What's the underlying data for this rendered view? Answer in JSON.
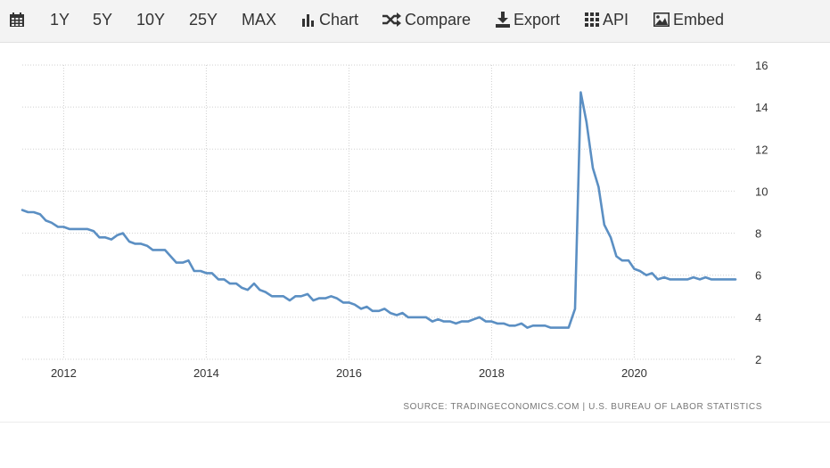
{
  "toolbar": {
    "calendar_icon": "calendar-icon",
    "ranges": [
      "1Y",
      "5Y",
      "10Y",
      "25Y",
      "MAX"
    ],
    "chart_label": "Chart",
    "compare_label": "Compare",
    "export_label": "Export",
    "api_label": "API",
    "embed_label": "Embed"
  },
  "source_text": "SOURCE: TRADINGECONOMICS.COM  |  U.S. BUREAU OF LABOR STATISTICS",
  "colors": {
    "line": "#5b8fc3",
    "grid": "#d0d0d0",
    "toolbar_bg": "#f3f3f3",
    "text": "#333333"
  },
  "chart_data": {
    "type": "line",
    "title": "",
    "xlabel": "",
    "ylabel": "",
    "x_ticks": [
      "2012",
      "2014",
      "2016",
      "2018",
      "2020"
    ],
    "y_ticks": [
      2,
      4,
      6,
      8,
      10,
      12,
      14,
      16
    ],
    "ylim": [
      2,
      16
    ],
    "xlim": [
      2011.42,
      2021.42
    ],
    "y_axis_position": "right",
    "grid": true,
    "series": [
      {
        "name": "",
        "x": [
          2011.42,
          2011.5,
          2011.58,
          2011.67,
          2011.75,
          2011.83,
          2011.92,
          2012.0,
          2012.08,
          2012.17,
          2012.25,
          2012.33,
          2012.42,
          2012.5,
          2012.58,
          2012.67,
          2012.75,
          2012.83,
          2012.92,
          2013.0,
          2013.08,
          2013.17,
          2013.25,
          2013.33,
          2013.42,
          2013.5,
          2013.58,
          2013.67,
          2013.75,
          2013.83,
          2013.92,
          2014.0,
          2014.08,
          2014.17,
          2014.25,
          2014.33,
          2014.42,
          2014.5,
          2014.58,
          2014.67,
          2014.75,
          2014.83,
          2014.92,
          2015.0,
          2015.08,
          2015.17,
          2015.25,
          2015.33,
          2015.42,
          2015.5,
          2015.58,
          2015.67,
          2015.75,
          2015.83,
          2015.92,
          2016.0,
          2016.08,
          2016.17,
          2016.25,
          2016.33,
          2016.42,
          2016.5,
          2016.58,
          2016.67,
          2016.75,
          2016.83,
          2016.92,
          2017.0,
          2017.08,
          2017.17,
          2017.25,
          2017.33,
          2017.42,
          2017.5,
          2017.58,
          2017.67,
          2017.75,
          2017.83,
          2017.92,
          2018.0,
          2018.08,
          2018.17,
          2018.25,
          2018.33,
          2018.42,
          2018.5,
          2018.58,
          2018.67,
          2018.75,
          2018.83,
          2018.92,
          2019.0,
          2019.08,
          2019.17,
          2019.25,
          2019.33,
          2019.42,
          2019.5,
          2019.58,
          2019.67,
          2019.75,
          2019.83,
          2019.92,
          2020.0,
          2020.08,
          2020.17,
          2020.25,
          2020.33,
          2020.42,
          2020.5,
          2020.58,
          2020.67,
          2020.75,
          2020.83,
          2020.92,
          2021.0,
          2021.08,
          2021.17,
          2021.25,
          2021.33,
          2021.42
        ],
        "values": [
          9.1,
          9.0,
          9.0,
          8.9,
          8.6,
          8.5,
          8.3,
          8.3,
          8.2,
          8.2,
          8.2,
          8.2,
          8.1,
          7.8,
          7.8,
          7.7,
          7.9,
          8.0,
          7.6,
          7.5,
          7.5,
          7.4,
          7.2,
          7.2,
          7.2,
          6.9,
          6.6,
          6.6,
          6.7,
          6.2,
          6.2,
          6.1,
          6.1,
          5.8,
          5.8,
          5.6,
          5.6,
          5.4,
          5.3,
          5.6,
          5.3,
          5.2,
          5.0,
          5.0,
          5.0,
          4.8,
          5.0,
          5.0,
          5.1,
          4.8,
          4.9,
          4.9,
          5.0,
          4.9,
          4.7,
          4.7,
          4.6,
          4.4,
          4.5,
          4.3,
          4.3,
          4.4,
          4.2,
          4.1,
          4.2,
          4.0,
          4.0,
          4.0,
          4.0,
          3.8,
          3.9,
          3.8,
          3.8,
          3.7,
          3.8,
          3.8,
          3.9,
          4.0,
          3.8,
          3.8,
          3.7,
          3.7,
          3.6,
          3.6,
          3.7,
          3.5,
          3.6,
          3.6,
          3.6,
          3.5,
          3.5,
          3.5,
          3.5,
          4.4,
          14.7,
          13.3,
          11.1,
          10.2,
          8.4,
          7.8,
          6.9,
          6.7,
          6.7,
          6.3,
          6.2,
          6.0,
          6.1,
          5.8,
          5.9,
          5.8,
          5.8,
          5.8,
          5.8,
          5.9,
          5.8,
          5.9,
          5.8,
          5.8,
          5.8,
          5.8,
          5.8
        ]
      }
    ]
  }
}
